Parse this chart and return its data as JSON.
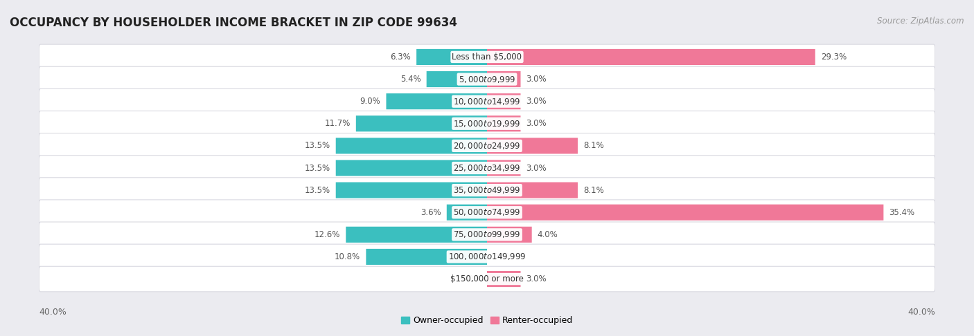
{
  "title": "OCCUPANCY BY HOUSEHOLDER INCOME BRACKET IN ZIP CODE 99634",
  "source": "Source: ZipAtlas.com",
  "categories": [
    "Less than $5,000",
    "$5,000 to $9,999",
    "$10,000 to $14,999",
    "$15,000 to $19,999",
    "$20,000 to $24,999",
    "$25,000 to $34,999",
    "$35,000 to $49,999",
    "$50,000 to $74,999",
    "$75,000 to $99,999",
    "$100,000 to $149,999",
    "$150,000 or more"
  ],
  "owner_values": [
    6.3,
    5.4,
    9.0,
    11.7,
    13.5,
    13.5,
    13.5,
    3.6,
    12.6,
    10.8,
    0.0
  ],
  "renter_values": [
    29.3,
    3.0,
    3.0,
    3.0,
    8.1,
    3.0,
    8.1,
    35.4,
    4.0,
    0.0,
    3.0
  ],
  "owner_color": "#3bbfbf",
  "renter_color": "#f07898",
  "owner_label": "Owner-occupied",
  "renter_label": "Renter-occupied",
  "axis_max": 40.0,
  "bg_color": "#ebebf0",
  "row_bg_color": "#ffffff",
  "title_fontsize": 12,
  "source_fontsize": 8.5,
  "label_fontsize": 8.5,
  "cat_fontsize": 8.5,
  "axis_label_fontsize": 9
}
